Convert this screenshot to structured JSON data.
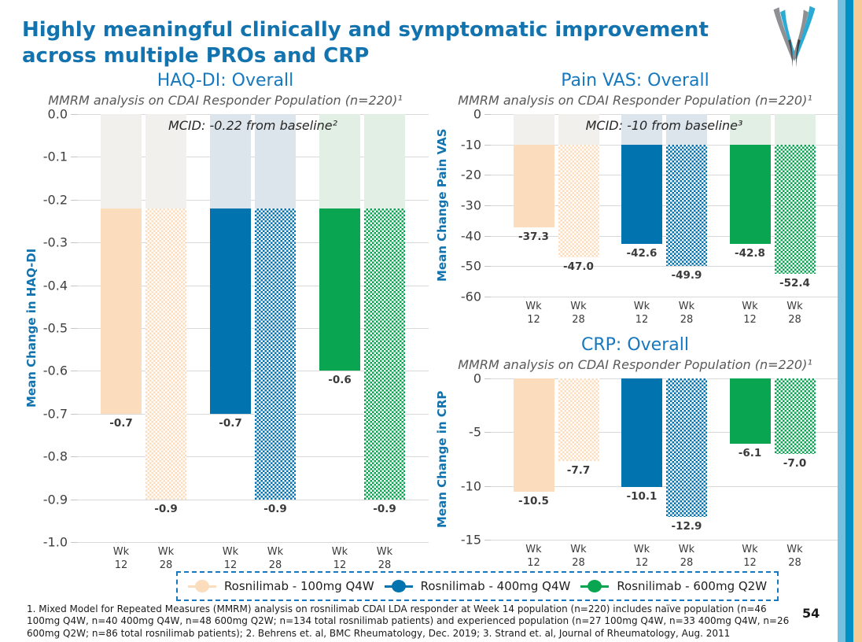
{
  "slide": {
    "title": "Highly meaningful clinically and symptomatic improvement across multiple PROs and CRP",
    "page_number": "54",
    "footnote": "1. Mixed Model for Repeated Measures (MMRM) analysis on rosnilimab CDAI LDA responder at Week 14 population (n=220) includes naïve population (n=46 100mg Q4W, n=40 400mg Q4W, n=48 600mg Q2W; n=134 total rosnilimab patients) and experienced population (n=27 100mg Q4W, n=33 400mg Q4W, n=26 600mg Q2W; n=86 total rosnilimab patients); 2. Behrens et. al, BMC Rheumatology, Dec. 2019; 3. Strand et. al, Journal of Rheumatology, Aug. 2011"
  },
  "icons": {
    "logo": "v-swoosh-company-logo"
  },
  "colors": {
    "title_blue": "#1273AE",
    "chart_title_blue": "#1778BD",
    "axis_label_blue": "#1273AE",
    "subtitle_gray": "#595959",
    "tick_text": "#3F3F3F",
    "gridline": "#D9D9D9",
    "legend_border": "#1778BD",
    "stripe_light_blue": "#74C0DF",
    "stripe_dark_blue": "#0090C3",
    "stripe_tan": "#F6C997"
  },
  "legend": {
    "items": [
      {
        "label": "Rosnilimab - 100mg Q4W",
        "color": "#FBDCBD"
      },
      {
        "label": "Rosnilimab - 400mg Q4W",
        "color": "#0173AF"
      },
      {
        "label": "Rosnilimab - 600mg Q2W",
        "color": "#0AA550"
      }
    ]
  },
  "chart_data": [
    {
      "type": "bar",
      "title": "HAQ-DI: Overall",
      "subtitle": "MMRM analysis on CDAI Responder Population (n=220)¹",
      "annotation": "MCID: -0.22 from baseline²",
      "ylabel": "Mean Change in HAQ-DI",
      "xlabel": "",
      "ylim": [
        -1.0,
        0.0
      ],
      "yticks": [
        "0.0",
        "-0.1",
        "-0.2",
        "-0.3",
        "-0.4",
        "-0.5",
        "-0.6",
        "-0.7",
        "-0.8",
        "-0.9",
        "-1.0"
      ],
      "mcid": -0.22,
      "grid": true,
      "legend_position": "shared-bottom",
      "categories": [
        "Wk 12",
        "Wk 28"
      ],
      "label_decimals": 1,
      "series": [
        {
          "name": "Rosnilimab - 100mg Q4W",
          "color": "#FBDCBD",
          "tint": "#F2F0ED",
          "values": [
            -0.7,
            -0.9
          ]
        },
        {
          "name": "Rosnilimab - 400mg Q4W",
          "color": "#0173AF",
          "tint": "#DCE5EB",
          "values": [
            -0.7,
            -0.9
          ]
        },
        {
          "name": "Rosnilimab - 600mg Q2W",
          "color": "#0AA550",
          "tint": "#E1EFE5",
          "values": [
            -0.6,
            -0.9
          ]
        }
      ]
    },
    {
      "type": "bar",
      "title": "Pain VAS: Overall",
      "subtitle": "MMRM analysis on CDAI Responder Population (n=220)¹",
      "annotation": "MCID: -10 from baseline³",
      "ylabel": "Mean Change Pain VAS",
      "xlabel": "",
      "ylim": [
        -60,
        0
      ],
      "yticks": [
        "0",
        "-10",
        "-20",
        "-30",
        "-40",
        "-50",
        "-60"
      ],
      "mcid": -10,
      "grid": true,
      "legend_position": "shared-bottom",
      "categories": [
        "Wk 12",
        "Wk 28"
      ],
      "label_decimals": 1,
      "series": [
        {
          "name": "Rosnilimab - 100mg Q4W",
          "color": "#FBDCBD",
          "tint": "#F2F0ED",
          "values": [
            -37.3,
            -47.0
          ]
        },
        {
          "name": "Rosnilimab - 400mg Q4W",
          "color": "#0173AF",
          "tint": "#DCE5EB",
          "values": [
            -42.6,
            -49.9
          ]
        },
        {
          "name": "Rosnilimab - 600mg Q2W",
          "color": "#0AA550",
          "tint": "#E1EFE5",
          "values": [
            -42.8,
            -52.4
          ]
        }
      ]
    },
    {
      "type": "bar",
      "title": "CRP: Overall",
      "subtitle": "MMRM analysis on CDAI Responder Population (n=220)¹",
      "annotation": "",
      "ylabel": "Mean Change in CRP",
      "xlabel": "",
      "ylim": [
        -15,
        0
      ],
      "yticks": [
        "0",
        "-5",
        "-10",
        "-15"
      ],
      "mcid": null,
      "grid": true,
      "legend_position": "shared-bottom",
      "categories": [
        "Wk 12",
        "Wk 28"
      ],
      "label_decimals": 1,
      "series": [
        {
          "name": "Rosnilimab - 100mg Q4W",
          "color": "#FBDCBD",
          "tint": "#F2F0ED",
          "values": [
            -10.5,
            -7.7
          ]
        },
        {
          "name": "Rosnilimab - 400mg Q4W",
          "color": "#0173AF",
          "tint": "#DCE5EB",
          "values": [
            -10.1,
            -12.9
          ]
        },
        {
          "name": "Rosnilimab - 600mg Q2W",
          "color": "#0AA550",
          "tint": "#E1EFE5",
          "values": [
            -6.1,
            -7.0
          ]
        }
      ]
    }
  ]
}
